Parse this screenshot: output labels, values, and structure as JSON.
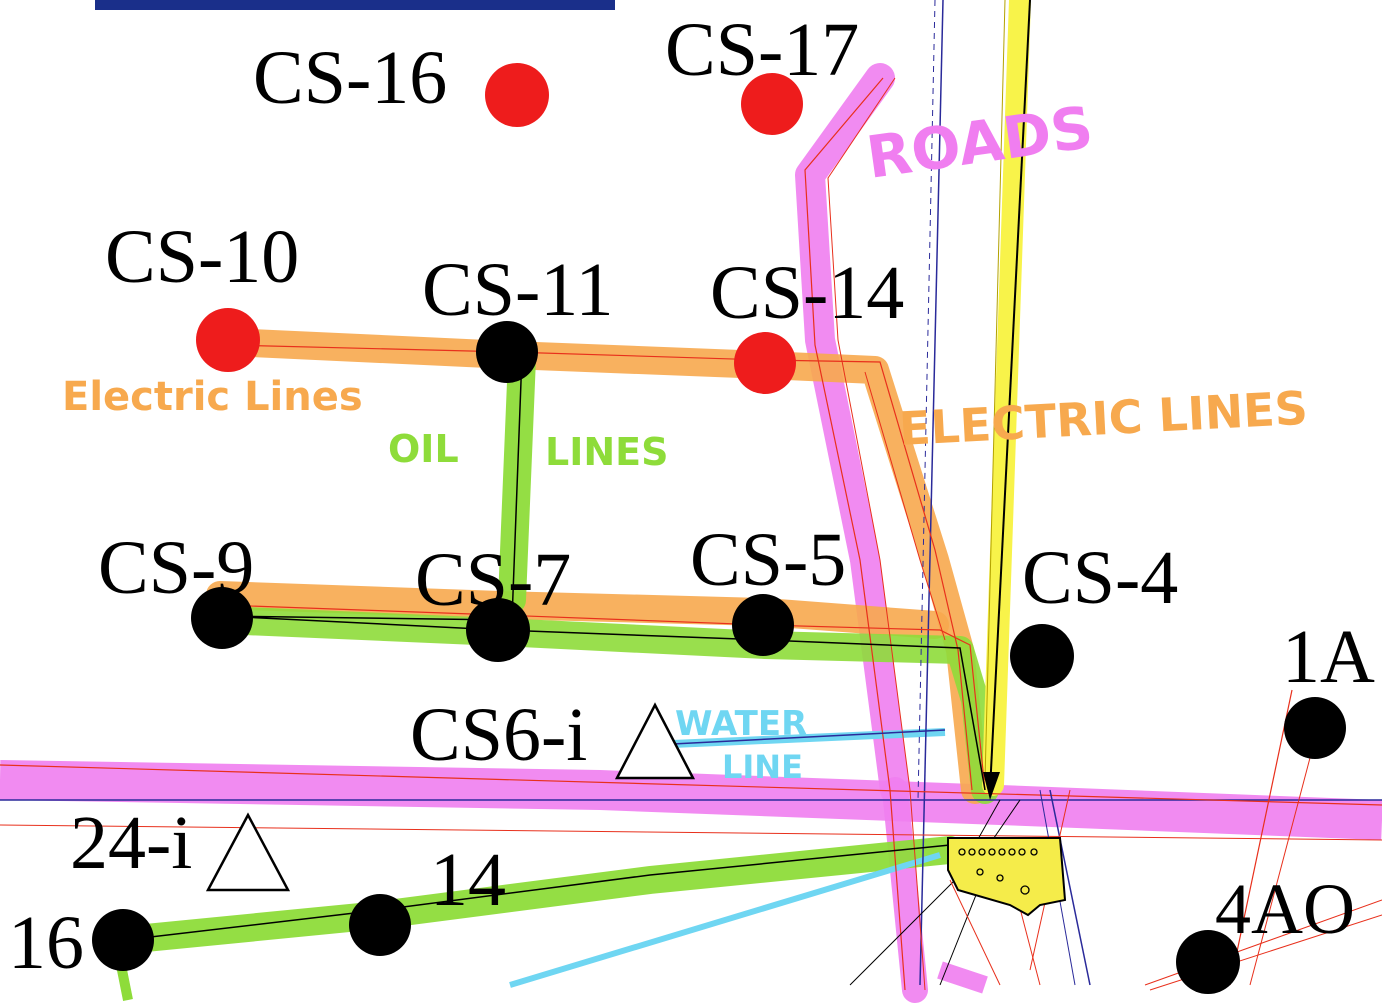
{
  "map_labels": {
    "roads": "ROADS",
    "electric_left": "Electric Lines",
    "electric_right": "ELECTRIC LINES",
    "oil_1": "OIL",
    "oil_2": "LINES",
    "water_1": "WATER",
    "water_2": "LINE"
  },
  "wells": {
    "cs16": "CS-16",
    "cs17": "CS-17",
    "cs10": "CS-10",
    "cs11": "CS-11",
    "cs14": "CS-14",
    "cs9": "CS-9",
    "cs7": "CS-7",
    "cs5": "CS-5",
    "cs4": "CS-4",
    "w1a": "1A",
    "w4ao": "4AO",
    "w14": "14",
    "w16": "16"
  },
  "injection_wells": {
    "cs6i": "CS6-i",
    "w24i": "24-i"
  },
  "legend_colors": {
    "electric": "#f7a94e",
    "oil": "#8edc3a",
    "road": "#f07ef0",
    "water": "#6fd6f2",
    "facility": "#f5ec4a",
    "well_red": "#ee1c1c",
    "well_black": "#000000"
  }
}
